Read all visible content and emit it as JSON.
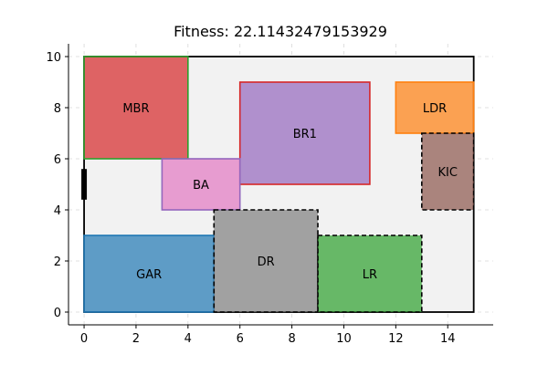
{
  "chart_data": {
    "type": "floor-plan",
    "title": "Fitness: 22.11432479153929",
    "xlabel": "",
    "ylabel": "",
    "xlim": [
      -0.6,
      15.75
    ],
    "ylim": [
      -0.5,
      10.5
    ],
    "xticks": [
      0,
      2,
      4,
      6,
      8,
      10,
      12,
      14
    ],
    "yticks": [
      0,
      2,
      4,
      6,
      8,
      10
    ],
    "grid": true,
    "boundary": {
      "x": 0,
      "y": 0,
      "w": 15,
      "h": 10,
      "fill": "#f2f2f2",
      "stroke": "#000000"
    },
    "entrance": {
      "x": 0,
      "y": 4.4,
      "h": 1.2,
      "color": "#000000"
    },
    "rooms": [
      {
        "label": "MBR",
        "x": 0,
        "y": 6,
        "w": 4,
        "h": 4,
        "fill": "#d62728",
        "opacity": 0.7,
        "stroke": "#2ca02c",
        "dashed": false
      },
      {
        "label": "BR1",
        "x": 6,
        "y": 5,
        "w": 5,
        "h": 4,
        "fill": "#9467bd",
        "opacity": 0.7,
        "stroke": "#d62728",
        "dashed": false
      },
      {
        "label": "LDR",
        "x": 12,
        "y": 7,
        "w": 3,
        "h": 2,
        "fill": "#ff7f0e",
        "opacity": 0.7,
        "stroke": "#ff7f0e",
        "dashed": false
      },
      {
        "label": "KIC",
        "x": 13,
        "y": 4,
        "w": 2,
        "h": 3,
        "fill": "#8c564b",
        "opacity": 0.7,
        "stroke": "#000000",
        "dashed": true
      },
      {
        "label": "BA",
        "x": 3,
        "y": 4,
        "w": 3,
        "h": 2,
        "fill": "#e377c2",
        "opacity": 0.7,
        "stroke": "#9467bd",
        "dashed": false
      },
      {
        "label": "GAR",
        "x": 0,
        "y": 0,
        "w": 5,
        "h": 3,
        "fill": "#1f77b4",
        "opacity": 0.7,
        "stroke": "#1f77b4",
        "dashed": false
      },
      {
        "label": "DR",
        "x": 5,
        "y": 0,
        "w": 4,
        "h": 4,
        "fill": "#7f7f7f",
        "opacity": 0.7,
        "stroke": "#000000",
        "dashed": true
      },
      {
        "label": "LR",
        "x": 9,
        "y": 0,
        "w": 4,
        "h": 3,
        "fill": "#2ca02c",
        "opacity": 0.7,
        "stroke": "#000000",
        "dashed": true
      }
    ]
  }
}
